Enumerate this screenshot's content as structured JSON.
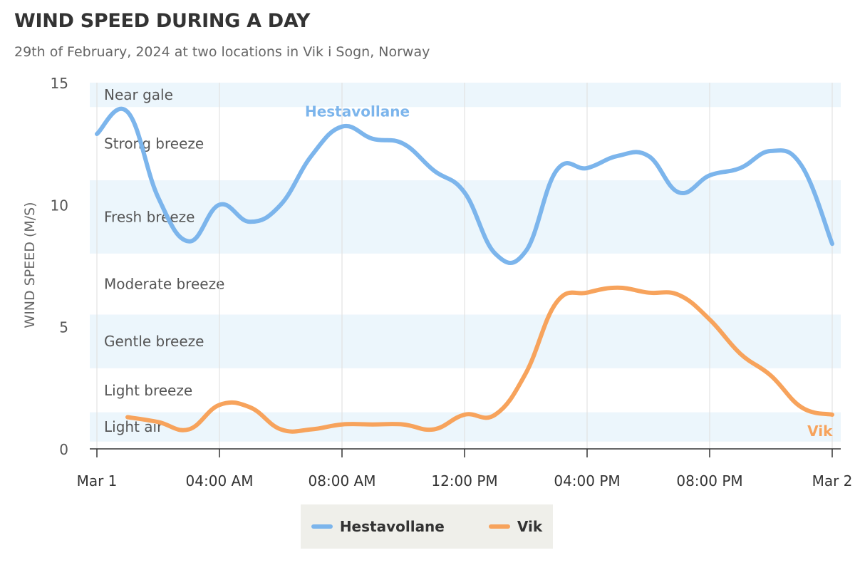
{
  "chart_data": {
    "type": "line",
    "title": "WIND SPEED DURING A DAY",
    "subtitle": "29th of February, 2024 at two locations in Vik i Sogn, Norway",
    "ylabel": "WIND SPEED (M/S)",
    "xlabel": "",
    "ylim": [
      0,
      15
    ],
    "yticks": [
      0,
      5,
      10,
      15
    ],
    "xlim": [
      0,
      24
    ],
    "xticks": [
      {
        "hour": 0,
        "label": "Mar 1"
      },
      {
        "hour": 4,
        "label": "04:00 AM"
      },
      {
        "hour": 8,
        "label": "08:00 AM"
      },
      {
        "hour": 12,
        "label": "12:00 PM"
      },
      {
        "hour": 16,
        "label": "04:00 PM"
      },
      {
        "hour": 20,
        "label": "08:00 PM"
      },
      {
        "hour": 24,
        "label": "Mar 2"
      }
    ],
    "grid": "vertical",
    "legend_position": "bottom-center",
    "bands": [
      {
        "label": "Light air",
        "from": 0.3,
        "to": 1.5,
        "shaded": true
      },
      {
        "label": "Light breeze",
        "from": 1.5,
        "to": 3.3,
        "shaded": false
      },
      {
        "label": "Gentle breeze",
        "from": 3.3,
        "to": 5.5,
        "shaded": true
      },
      {
        "label": "Moderate breeze",
        "from": 5.5,
        "to": 8.0,
        "shaded": false
      },
      {
        "label": "Fresh breeze",
        "from": 8.0,
        "to": 11.0,
        "shaded": true
      },
      {
        "label": "Strong breeze",
        "from": 11.0,
        "to": 14.0,
        "shaded": false
      },
      {
        "label": "Near gale",
        "from": 14.0,
        "to": 15.0,
        "shaded": true
      }
    ],
    "series": [
      {
        "name": "Hestavollane",
        "color": "#7cb5ec",
        "label_at_hour": 8.5,
        "x": [
          0,
          1,
          2,
          3,
          4,
          5,
          6,
          7,
          8,
          9,
          10,
          11,
          12,
          13,
          14,
          15,
          16,
          17,
          18,
          19,
          20,
          21,
          22,
          23,
          24
        ],
        "values": [
          12.9,
          13.8,
          10.3,
          8.5,
          10.0,
          9.3,
          10.0,
          12.0,
          13.2,
          12.7,
          12.5,
          11.4,
          10.5,
          8.0,
          8.1,
          11.4,
          11.5,
          12.0,
          12.0,
          10.5,
          11.2,
          11.5,
          12.2,
          11.6,
          8.4
        ]
      },
      {
        "name": "Vik",
        "color": "#f7a35c",
        "label_at_hour": 23.6,
        "x": [
          1,
          2,
          3,
          4,
          5,
          6,
          7,
          8,
          9,
          10,
          11,
          12,
          13,
          14,
          15,
          16,
          17,
          18,
          19,
          20,
          21,
          22,
          23,
          24
        ],
        "values": [
          1.3,
          1.1,
          0.8,
          1.8,
          1.7,
          0.8,
          0.8,
          1.0,
          1.0,
          1.0,
          0.8,
          1.4,
          1.4,
          3.1,
          6.0,
          6.4,
          6.6,
          6.4,
          6.3,
          5.3,
          3.9,
          3.0,
          1.7,
          1.4
        ]
      }
    ]
  }
}
